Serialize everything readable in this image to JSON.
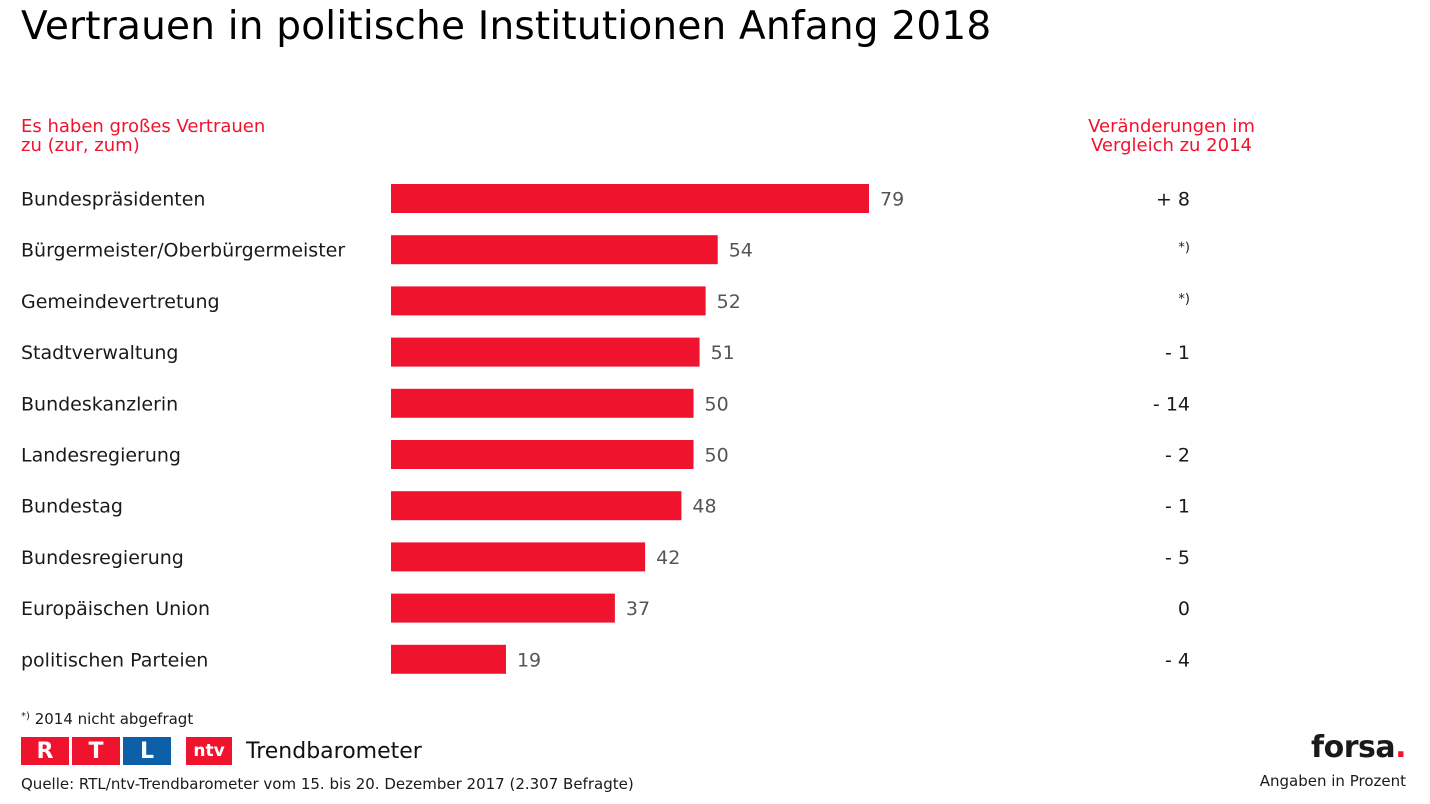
{
  "title": "Vertrauen in politische Institutionen Anfang 2018",
  "subheads": {
    "left_line1": "Es haben großes Vertrauen",
    "left_line2": "zu (zur, zum)",
    "right_line1": "Veränderungen im",
    "right_line2": "Vergleich zu 2014"
  },
  "chart_data": {
    "type": "bar",
    "orientation": "horizontal",
    "categories": [
      "Bundespräsidenten",
      "Bürgermeister/Oberbürgermeister",
      "Gemeindevertretung",
      "Stadtverwaltung",
      "Bundeskanzlerin",
      "Landesregierung",
      "Bundestag",
      "Bundesregierung",
      "Europäischen Union",
      "politischen Parteien"
    ],
    "values": [
      79,
      54,
      52,
      51,
      50,
      50,
      48,
      42,
      37,
      19
    ],
    "changes": [
      "+ 8",
      "*)",
      "*)",
      "- 1",
      "- 14",
      "- 2",
      "- 1",
      "- 5",
      "0",
      "- 4"
    ],
    "bar_color": "#f0132e",
    "unit": "Angaben in Prozent"
  },
  "footnote": {
    "mark": "*)",
    "text": "2014 nicht abgefragt"
  },
  "branding": {
    "rtl_letters": [
      "R",
      "T",
      "L"
    ],
    "rtl_colors": [
      "#f0132e",
      "#f0132e",
      "#0d5fa8"
    ],
    "ntv": "ntv",
    "trend": "Trendbarometer",
    "forsa": "forsa",
    "forsa_dot": "."
  },
  "source": "Quelle: RTL/ntv-Trendbarometer vom 15. bis 20. Dezember 2017 (2.307 Befragte)"
}
